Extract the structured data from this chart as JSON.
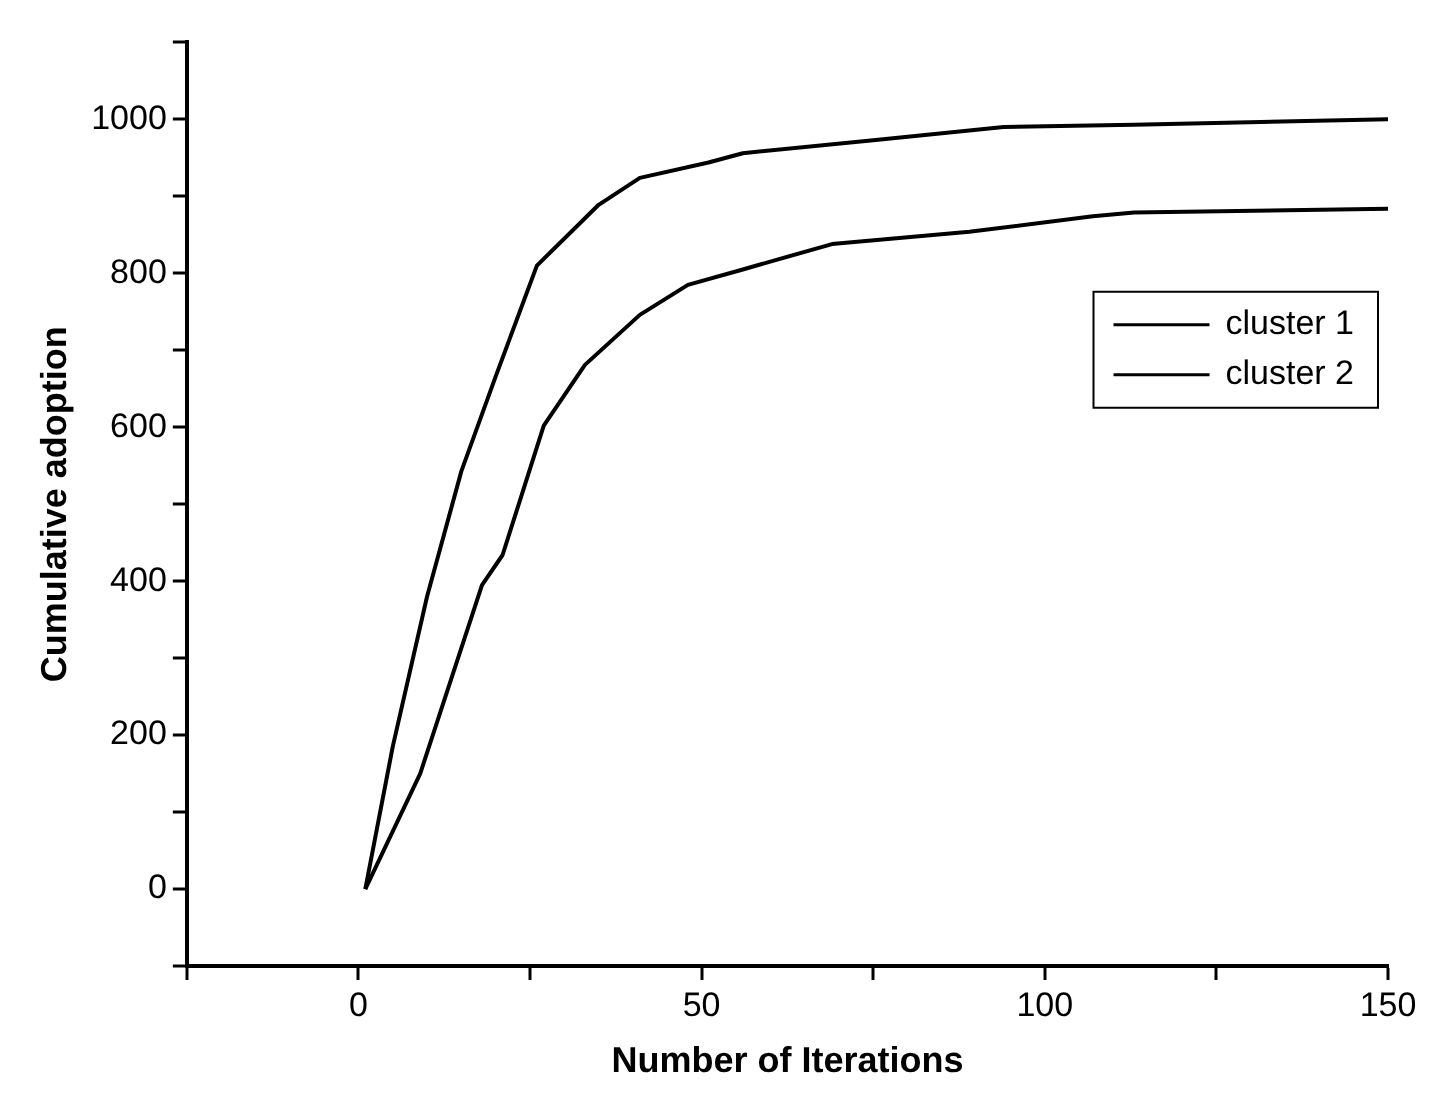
{
  "chart_data": {
    "type": "line",
    "xlabel": "Number of Iterations",
    "ylabel": "Cumulative adoption",
    "xlim": [
      -25,
      150
    ],
    "xticks": [
      {
        "value": -25,
        "label": null
      },
      0,
      {
        "value": 25,
        "label": null
      },
      50,
      {
        "value": 75,
        "label": null
      },
      100,
      {
        "value": 125,
        "label": null
      },
      150
    ],
    "ylim": [
      -100,
      1100
    ],
    "yticks": [
      {
        "value": -100,
        "label": null
      },
      0,
      {
        "value": 100,
        "label": null
      },
      200,
      {
        "value": 300,
        "label": null
      },
      400,
      {
        "value": 500,
        "label": null
      },
      600,
      {
        "value": 700,
        "label": null
      },
      800,
      {
        "value": 900,
        "label": null
      },
      1000,
      {
        "value": 1100,
        "label": null
      }
    ],
    "grid": false,
    "legend": "top right",
    "marker": "none",
    "line_style": "solid",
    "series": [
      {
        "name": "cluster 1",
        "color": "#000000",
        "x": [
          1,
          5,
          10,
          15,
          20,
          26,
          35,
          41,
          51,
          56,
          75,
          94,
          113,
          150
        ],
        "values": [
          0,
          185,
          380,
          543,
          666,
          810,
          889,
          924,
          944,
          956,
          973,
          990,
          993,
          1000
        ]
      },
      {
        "name": "cluster 2",
        "color": "#000000",
        "x": [
          1,
          9,
          18,
          21,
          27,
          33,
          41,
          48,
          56,
          69,
          89,
          107,
          113,
          150
        ],
        "values": [
          0,
          150,
          395,
          434,
          602,
          681,
          746,
          785,
          805,
          838,
          854,
          874,
          879,
          884
        ]
      }
    ]
  }
}
